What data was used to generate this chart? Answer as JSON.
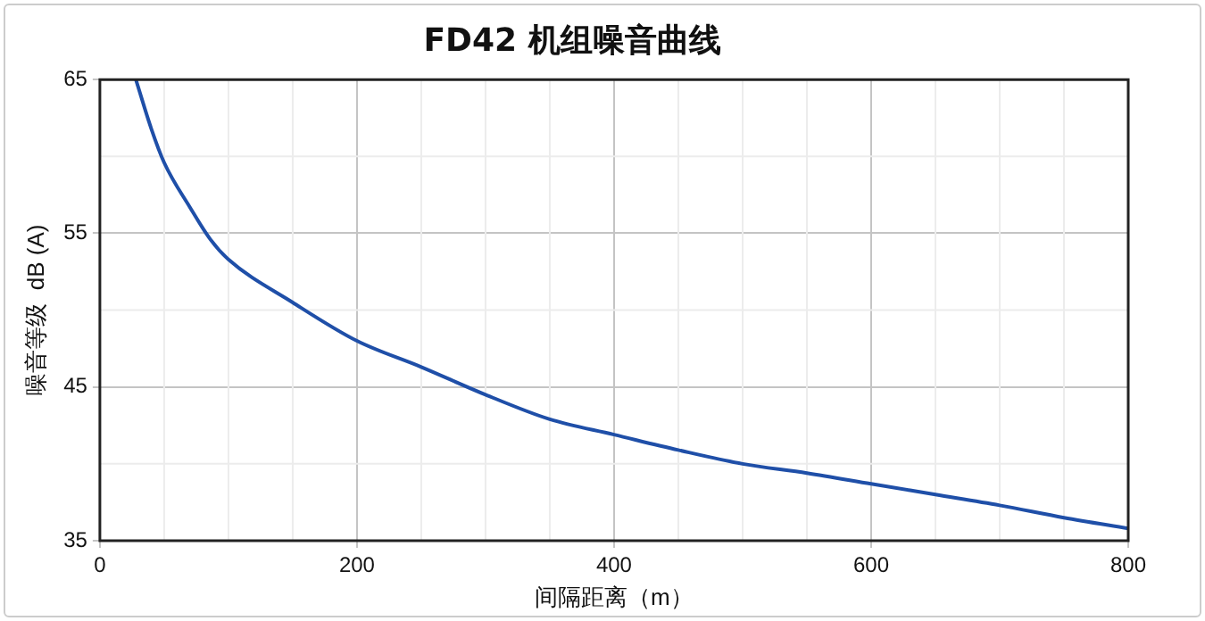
{
  "chart_data": {
    "type": "line",
    "title": "FD42 机组噪音曲线",
    "xlabel": "间隔距离（m）",
    "ylabel": "噪音等级  dB (A)",
    "x": [
      28,
      40,
      50,
      70,
      86,
      100,
      150,
      200,
      250,
      300,
      350,
      400,
      450,
      500,
      550,
      600,
      650,
      700,
      750,
      800
    ],
    "series": [
      {
        "color": "#1f4fa8",
        "values": [
          65,
          61.8,
          59.6,
          56.7,
          54.6,
          53.3,
          50.5,
          48,
          46.3,
          44.5,
          42.9,
          41.9,
          40.9,
          40,
          39.4,
          38.7,
          38,
          37.3,
          36.5,
          35.8
        ]
      }
    ],
    "xlim": [
      0,
      800
    ],
    "xticks": [
      0,
      200,
      400,
      600,
      800
    ],
    "ylim": [
      35,
      65
    ],
    "yticks": [
      35,
      45,
      55,
      65
    ],
    "grid": true,
    "legend": false,
    "marker": "none",
    "line_style": "solid"
  }
}
